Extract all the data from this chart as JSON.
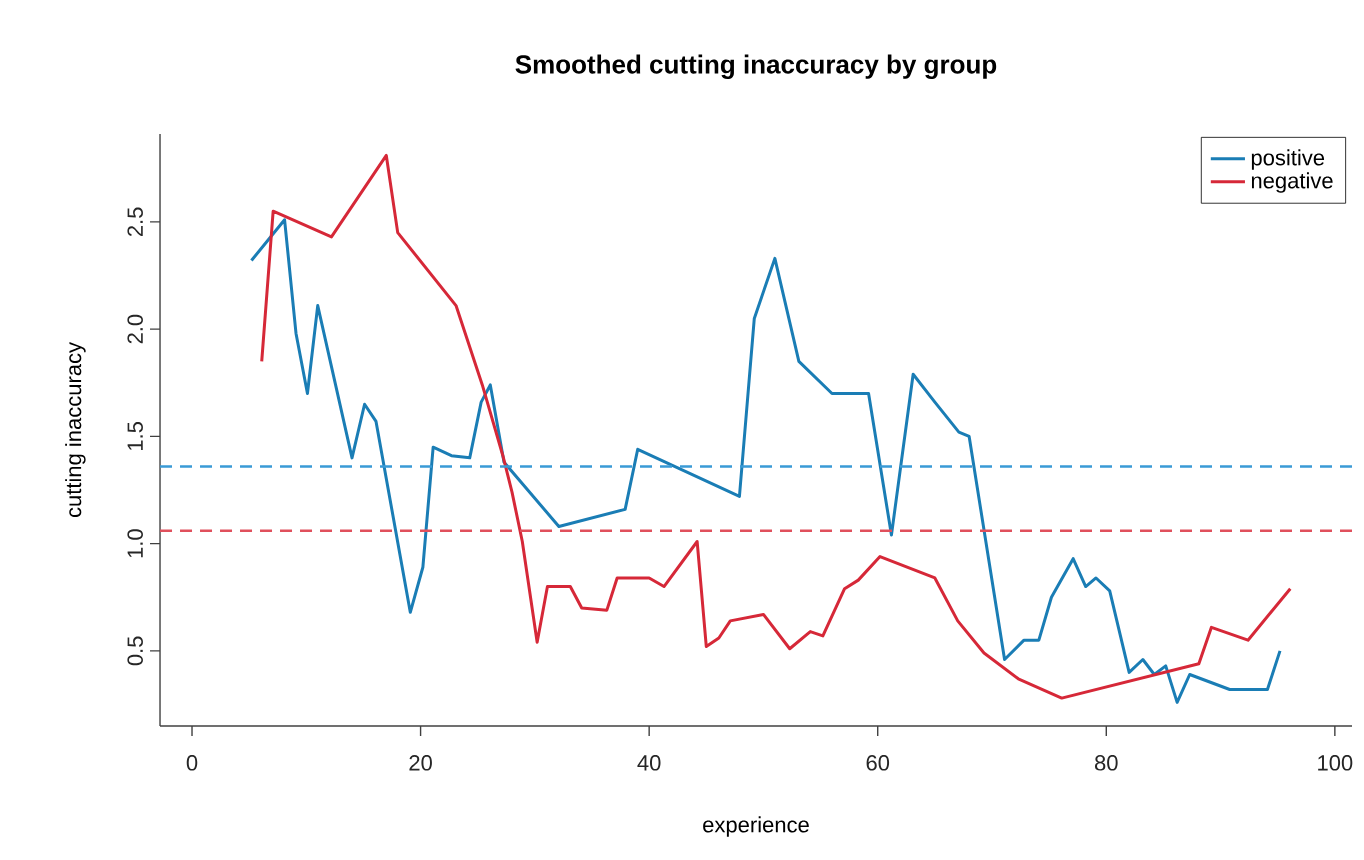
{
  "chart_data": {
    "type": "line",
    "title": "Smoothed cutting inaccuracy by group",
    "xlabel": "experience",
    "ylabel": "cutting inaccuracy",
    "xlim": [
      -2.8,
      101.5
    ],
    "ylim": [
      0.15,
      2.91
    ],
    "xticks": [
      0,
      20,
      40,
      60,
      80,
      100
    ],
    "yticks": [
      {
        "value": 0.5,
        "label": "0.5"
      },
      {
        "value": 1.0,
        "label": "1.0"
      },
      {
        "value": 1.5,
        "label": "1.5"
      },
      {
        "value": 2.0,
        "label": "2.0"
      },
      {
        "value": 2.5,
        "label": "2.5"
      }
    ],
    "legend": "top right",
    "line_style": "solid",
    "series": [
      {
        "name": "positive",
        "color": "#1a7db5",
        "x": [
          5.2,
          8.1,
          9.1,
          10.1,
          11.0,
          14.0,
          15.1,
          16.1,
          19.1,
          20.2,
          21.1,
          22.7,
          24.3,
          25.3,
          26.1,
          27.3,
          32.1,
          37.9,
          39.0,
          47.9,
          49.2,
          51.0,
          53.1,
          56.0,
          59.2,
          61.2,
          63.1,
          65.0,
          67.1,
          68.0,
          71.1,
          72.8,
          74.1,
          75.2,
          77.1,
          78.2,
          79.1,
          80.3,
          82.0,
          83.2,
          84.2,
          85.2,
          86.2,
          87.3,
          90.8,
          94.1,
          95.2
        ],
        "values": [
          2.32,
          2.51,
          1.98,
          1.7,
          2.11,
          1.4,
          1.65,
          1.57,
          0.68,
          0.89,
          1.45,
          1.41,
          1.4,
          1.66,
          1.74,
          1.38,
          1.08,
          1.16,
          1.44,
          1.22,
          2.05,
          2.33,
          1.85,
          1.7,
          1.7,
          1.04,
          1.79,
          1.66,
          1.52,
          1.5,
          0.46,
          0.55,
          0.55,
          0.75,
          0.93,
          0.8,
          0.84,
          0.78,
          0.4,
          0.46,
          0.39,
          0.43,
          0.26,
          0.39,
          0.32,
          0.32,
          0.5
        ]
      },
      {
        "name": "negative",
        "color": "#d62838",
        "x": [
          6.1,
          7.1,
          12.2,
          17.0,
          18.0,
          23.1,
          25.4,
          27.2,
          28.0,
          28.9,
          30.2,
          31.1,
          33.1,
          34.1,
          36.3,
          37.2,
          40.0,
          41.3,
          44.2,
          45.0,
          46.1,
          47.1,
          50.0,
          52.3,
          54.1,
          55.2,
          57.1,
          58.3,
          60.2,
          65.0,
          67.0,
          69.3,
          72.3,
          76.1,
          88.1,
          89.2,
          92.4,
          96.1
        ],
        "values": [
          1.85,
          2.55,
          2.43,
          2.81,
          2.45,
          2.11,
          1.74,
          1.41,
          1.24,
          1.01,
          0.54,
          0.8,
          0.8,
          0.7,
          0.69,
          0.84,
          0.84,
          0.8,
          1.01,
          0.52,
          0.56,
          0.64,
          0.67,
          0.51,
          0.59,
          0.57,
          0.79,
          0.83,
          0.94,
          0.84,
          0.64,
          0.49,
          0.37,
          0.28,
          0.44,
          0.61,
          0.55,
          0.79
        ]
      }
    ],
    "ref_lines": [
      {
        "axis": "y",
        "value": 1.36,
        "color": "#3a9ad6",
        "line_style": "dashed"
      },
      {
        "axis": "y",
        "value": 1.06,
        "color": "#e0505c",
        "line_style": "dashed"
      }
    ]
  }
}
